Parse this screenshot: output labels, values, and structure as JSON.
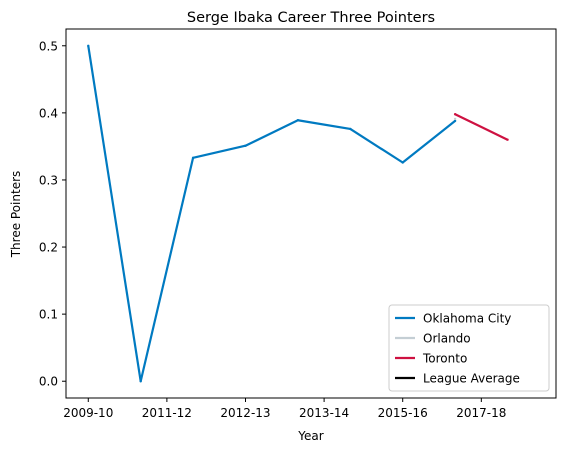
{
  "chart_data": {
    "type": "line",
    "title": "Serge Ibaka Career Three Pointers",
    "xlabel": "Year",
    "ylabel": "Three Pointers",
    "xlim": [
      -0.425,
      8.925
    ],
    "ylim": [
      -0.025,
      0.525
    ],
    "x_ticks": [
      {
        "pos": 0,
        "label": "2009-10"
      },
      {
        "pos": 1.5,
        "label": "2011-12"
      },
      {
        "pos": 3,
        "label": "2012-13"
      },
      {
        "pos": 4.5,
        "label": "2013-14"
      },
      {
        "pos": 6,
        "label": "2015-16"
      },
      {
        "pos": 7.5,
        "label": "2017-18"
      }
    ],
    "y_ticks": [
      0.0,
      0.1,
      0.2,
      0.3,
      0.4,
      0.5
    ],
    "y_tick_labels": [
      "0.0",
      "0.1",
      "0.2",
      "0.3",
      "0.4",
      "0.5"
    ],
    "grid": false,
    "legend_position": "lower-right",
    "series": [
      {
        "name": "Oklahoma City",
        "color": "#007AC1",
        "x": [
          0,
          1,
          2,
          3,
          4,
          5,
          6,
          7
        ],
        "y": [
          0.5,
          0.0,
          0.333,
          0.351,
          0.389,
          0.376,
          0.326,
          0.388
        ]
      },
      {
        "name": "Orlando",
        "color": "#C4CED4",
        "x": [
          7
        ],
        "y": [
          0.391
        ]
      },
      {
        "name": "Toronto",
        "color": "#CE1141",
        "x": [
          7,
          8
        ],
        "y": [
          0.398,
          0.36
        ]
      },
      {
        "name": "League Average",
        "color": "#000000",
        "x": [],
        "y": []
      }
    ]
  }
}
